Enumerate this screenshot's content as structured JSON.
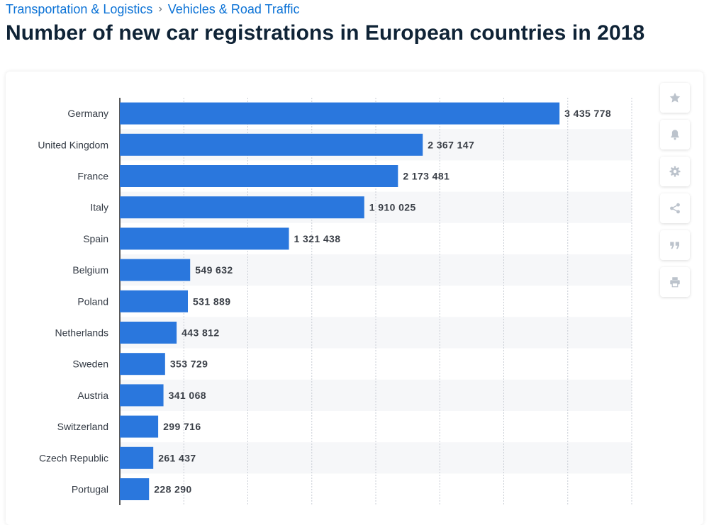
{
  "breadcrumb": {
    "items": [
      "Transportation & Logistics",
      "Vehicles & Road Traffic"
    ],
    "separator": "›"
  },
  "page_title": "Number of new car registrations in European countries in 2018",
  "toolbar": {
    "icons": [
      "star-icon",
      "bell-icon",
      "gear-icon",
      "share-icon",
      "quote-icon",
      "print-icon"
    ]
  },
  "colors": {
    "bar": "#2a77dd",
    "link": "#0b72d6",
    "title": "#0f2336",
    "icon": "#bcc3cc"
  },
  "chart_data": {
    "type": "bar",
    "orientation": "horizontal",
    "categories": [
      "Germany",
      "United Kingdom",
      "France",
      "Italy",
      "Spain",
      "Belgium",
      "Poland",
      "Netherlands",
      "Sweden",
      "Austria",
      "Switzerland",
      "Czech Republic",
      "Portugal"
    ],
    "values": [
      3435778,
      2367147,
      2173481,
      1910025,
      1321438,
      549632,
      531889,
      443812,
      353729,
      341068,
      299716,
      261437,
      228290
    ],
    "value_labels": [
      "3 435 778",
      "2 367 147",
      "2 173 481",
      "1 910 025",
      "1 321 438",
      "549 632",
      "531 889",
      "443 812",
      "353 729",
      "341 068",
      "299 716",
      "261 437",
      "228 290"
    ],
    "xlim": [
      0,
      4000000
    ],
    "grid": true,
    "title": "Number of new car registrations in European countries in 2018"
  }
}
